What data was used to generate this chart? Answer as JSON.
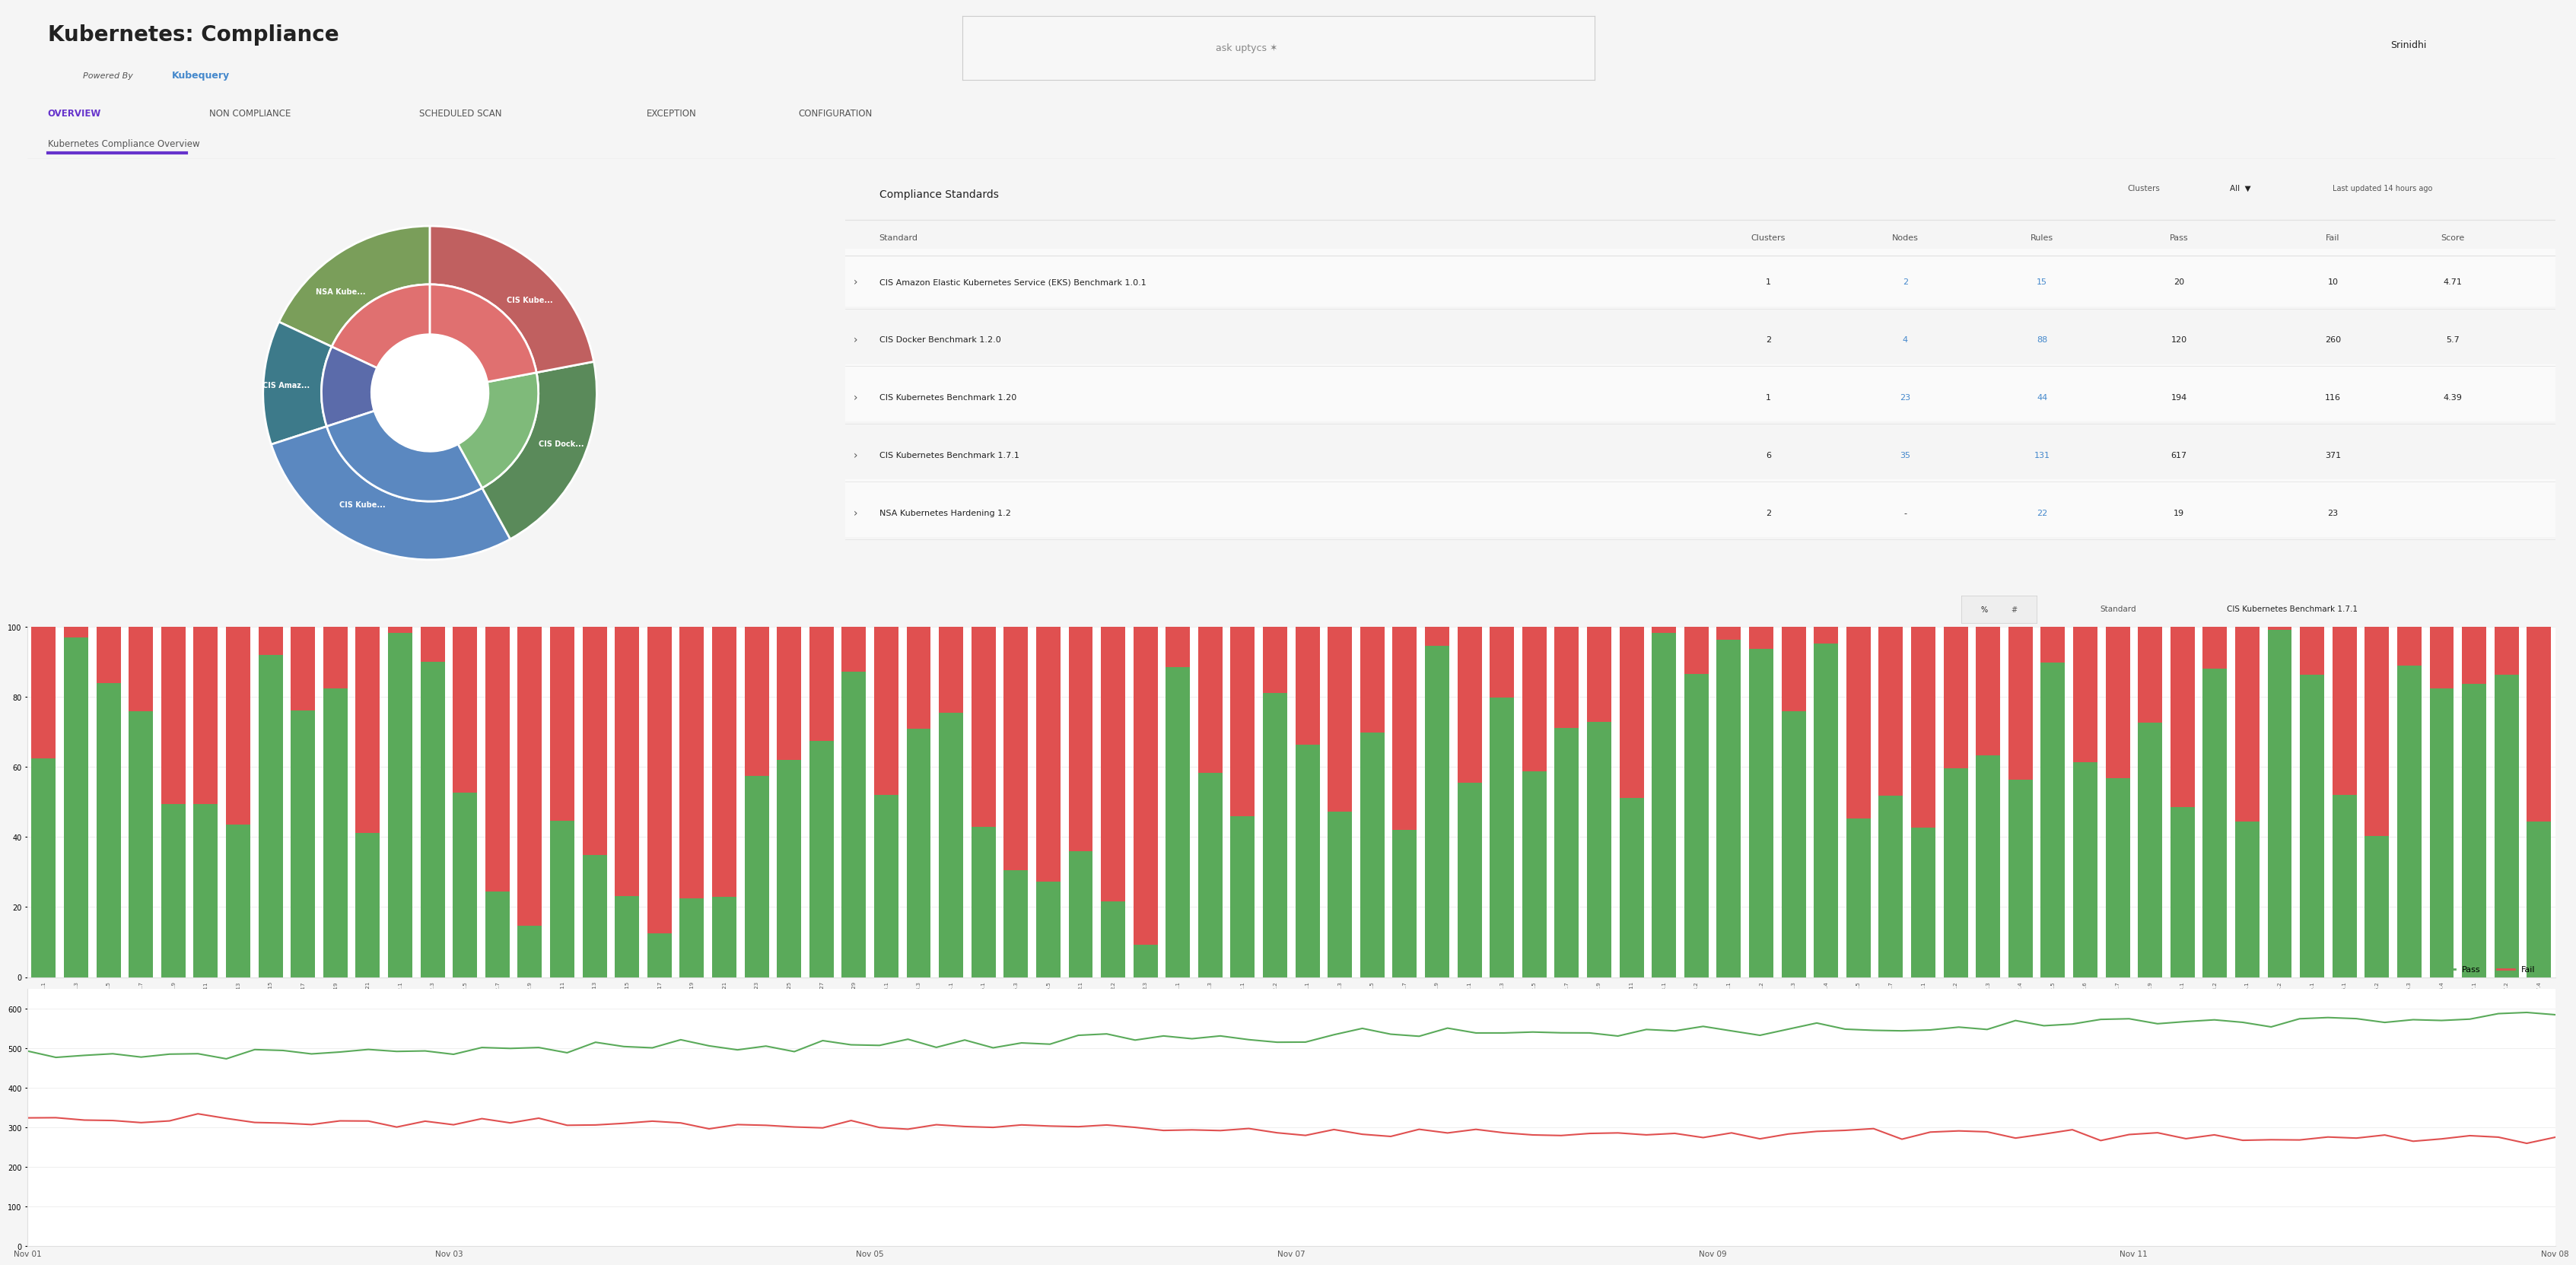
{
  "title": "Kubernetes: Compliance",
  "powered_by": "Powered By",
  "powered_by_brand": "Kubequery",
  "nav_tabs": [
    "OVERVIEW",
    "NON COMPLIANCE",
    "SCHEDULED SCAN",
    "EXCEPTION",
    "CONFIGURATION"
  ],
  "active_tab": "OVERVIEW",
  "page_subtitle": "Kubernetes Compliance Overview",
  "header_right": "Srinidhi",
  "compliance_title": "Compliance Standards",
  "clusters_label": "Clusters",
  "clusters_value": "All",
  "last_updated": "Last updated 14 hours ago",
  "table_headers": [
    "Standard",
    "Clusters",
    "Nodes",
    "Rules",
    "Pass",
    "Fail",
    "Score"
  ],
  "table_rows": [
    {
      "standard": "CIS Amazon Elastic Kubernetes Service (EKS) Benchmark 1.0.1",
      "clusters": 1,
      "nodes": "2",
      "rules": "15",
      "pass": 20,
      "fail": 10,
      "score": "4.71"
    },
    {
      "standard": "CIS Docker Benchmark 1.2.0",
      "clusters": 2,
      "nodes": "4",
      "rules": "88",
      "pass": 120,
      "fail": 260,
      "score": "5.7"
    },
    {
      "standard": "CIS Kubernetes Benchmark 1.20",
      "clusters": 1,
      "nodes": "23",
      "rules": "44",
      "pass": 194,
      "fail": 116,
      "score": "4.39"
    },
    {
      "standard": "CIS Kubernetes Benchmark 1.7.1",
      "clusters": 6,
      "nodes": "35",
      "rules": "131",
      "pass": 617,
      "fail": 371,
      "score": ""
    },
    {
      "standard": "NSA Kubernetes Hardening 1.2",
      "clusters": 2,
      "nodes": "-",
      "rules": "22",
      "pass": 19,
      "fail": 23,
      "score": ""
    }
  ],
  "pie_outer_colors": [
    "#7a9e5a",
    "#3d7a8a",
    "#5b88c0",
    "#5a8a5a",
    "#c06060"
  ],
  "pie_inner_colors": [
    "#e07070",
    "#5b6baa",
    "#5b88c0",
    "#7fba7a",
    "#e07070"
  ],
  "pie_sizes": [
    0.18,
    0.12,
    0.28,
    0.2,
    0.22
  ],
  "pie_labels": [
    "NSA Kube...",
    "CIS Amaz...",
    "CIS Kube...",
    "CIS Dock...",
    "CIS Kube..."
  ],
  "bar_chart_title": "CIS Kubernetes Benchmark 1.7.1",
  "bar_pass_color": "#5aaa5a",
  "bar_fail_color": "#e05050",
  "bar_yticks": [
    0,
    20,
    40,
    60,
    80,
    100
  ],
  "line_chart_yticks": [
    0,
    100,
    200,
    300,
    400,
    500,
    600
  ],
  "line_pass_color": "#5aaa5a",
  "line_fail_color": "#e05050",
  "bg_color": "#f5f5f5",
  "panel_color": "#ffffff",
  "border_color": "#e0e0e0",
  "header_bg": "#ffffff",
  "tab_active_color": "#6633cc",
  "tab_inactive_color": "#555555",
  "text_dark": "#222222",
  "text_medium": "#555555",
  "text_light": "#888888",
  "node_link_color": "#4488cc",
  "brand_color": "#4488cc",
  "bar_sections": [
    "1.1.1",
    "1.1.3",
    "1.1.5",
    "1.1.7",
    "1.1.9",
    "1.1.11",
    "1.1.13",
    "1.1.15",
    "1.1.17",
    "1.1.19",
    "1.1.21",
    "1.2.1",
    "1.2.3",
    "1.2.5",
    "1.2.7",
    "1.2.9",
    "1.2.11",
    "1.2.13",
    "1.2.15",
    "1.2.17",
    "1.2.19",
    "1.2.21",
    "1.2.23",
    "1.2.25",
    "1.2.27",
    "1.2.29",
    "1.3.1",
    "1.3.3",
    "1.4.1",
    "1.5.1",
    "1.5.3",
    "1.5.5",
    "2.1",
    "2.2",
    "2.3",
    "3.1.1",
    "3.1.3",
    "3.2.1",
    "3.2.2",
    "4.1.1",
    "4.1.3",
    "4.1.5",
    "4.1.7",
    "4.1.9",
    "4.2.1",
    "4.2.3",
    "4.2.5",
    "4.2.7",
    "4.2.9",
    "4.2.11",
    "4.3.1",
    "4.3.2",
    "5.1.1",
    "5.1.2",
    "5.1.3",
    "5.1.4",
    "5.1.5",
    "5.1.7",
    "5.2.1",
    "5.2.2",
    "5.2.3",
    "5.2.4",
    "5.2.5",
    "5.2.6",
    "5.2.7",
    "5.2.9",
    "5.3.1",
    "5.3.2",
    "5.4.1",
    "5.4.2",
    "5.5.1",
    "5.6.1",
    "5.6.2",
    "5.6.3",
    "5.6.4",
    "5.7.1",
    "5.7.2",
    "5.7.4"
  ],
  "date_labels": [
    "Nov 01",
    "Nov 03",
    "Nov 05",
    "Nov 07",
    "Nov 09",
    "Nov 11",
    "Nov 08"
  ]
}
